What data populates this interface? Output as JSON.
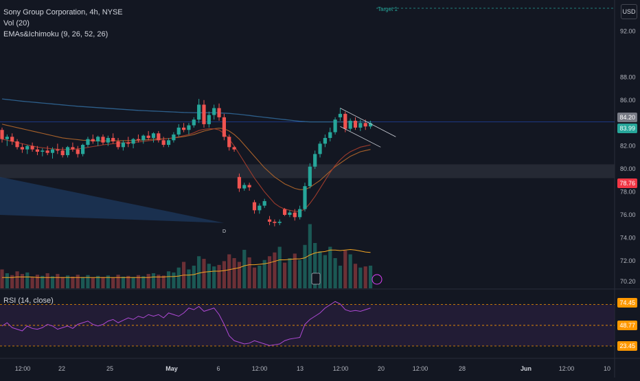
{
  "legend": {
    "symbol": "Sony Group Corporation, 4h, NYSE",
    "volume": "Vol (20)",
    "emas": "EMAs&Ichimoku (9, 26, 52, 26)"
  },
  "rsi": {
    "label": "RSI (14, close)",
    "levels": {
      "upper": "74.45",
      "mid": "48.77",
      "lower": "23.45"
    }
  },
  "currency": "USD",
  "target_label": "Target 1",
  "price_tags": [
    {
      "value": "84.20",
      "color": "#787b86"
    },
    {
      "value": "83.99",
      "color": "#26a69a"
    },
    {
      "value": "78.76",
      "color": "#f23645"
    }
  ],
  "marker": "D",
  "chart_data": {
    "type": "candlestick",
    "title": "Sony Group Corporation, 4h, NYSE",
    "y_axis": {
      "ticks": [
        "92.00",
        "88.00",
        "86.00",
        "82.00",
        "80.00",
        "78.00",
        "76.00",
        "74.00",
        "72.00",
        "70.20"
      ],
      "range": [
        69.6,
        94.0
      ]
    },
    "x_axis": {
      "ticks": [
        "12:00",
        "22",
        "25",
        "May",
        "6",
        "12:00",
        "13",
        "12:00",
        "20",
        "12:00",
        "28",
        "Jun",
        "12:00",
        "10"
      ]
    },
    "candles": [
      [
        83.4,
        83.6,
        82.3,
        82.6
      ],
      [
        82.6,
        83.0,
        82.0,
        82.8
      ],
      [
        82.8,
        83.1,
        82.1,
        82.4
      ],
      [
        82.4,
        82.6,
        81.7,
        81.9
      ],
      [
        81.9,
        82.2,
        81.4,
        81.7
      ],
      [
        81.7,
        82.1,
        81.3,
        82.0
      ],
      [
        82.0,
        82.3,
        81.5,
        81.7
      ],
      [
        81.7,
        82.0,
        81.2,
        81.5
      ],
      [
        81.5,
        81.8,
        81.1,
        81.6
      ],
      [
        81.6,
        82.0,
        81.2,
        81.4
      ],
      [
        81.4,
        81.9,
        80.9,
        81.7
      ],
      [
        81.7,
        82.2,
        81.3,
        81.6
      ],
      [
        81.6,
        81.9,
        81.0,
        81.2
      ],
      [
        81.2,
        82.0,
        81.0,
        81.9
      ],
      [
        81.9,
        82.3,
        81.5,
        81.7
      ],
      [
        81.7,
        82.0,
        81.0,
        81.3
      ],
      [
        81.3,
        82.2,
        81.1,
        82.1
      ],
      [
        82.1,
        82.8,
        81.9,
        82.6
      ],
      [
        82.6,
        83.0,
        82.2,
        82.4
      ],
      [
        82.4,
        82.9,
        82.0,
        82.8
      ],
      [
        82.8,
        83.0,
        82.1,
        82.3
      ],
      [
        82.3,
        82.9,
        82.0,
        82.7
      ],
      [
        82.7,
        83.1,
        82.2,
        82.4
      ],
      [
        82.4,
        82.7,
        81.7,
        81.9
      ],
      [
        81.9,
        82.5,
        81.6,
        82.3
      ],
      [
        82.3,
        82.8,
        81.9,
        82.2
      ],
      [
        82.2,
        82.7,
        81.8,
        82.6
      ],
      [
        82.6,
        83.0,
        82.3,
        82.5
      ],
      [
        82.5,
        83.0,
        82.2,
        82.9
      ],
      [
        82.9,
        83.3,
        82.5,
        82.7
      ],
      [
        82.7,
        83.2,
        82.3,
        83.1
      ],
      [
        83.1,
        83.3,
        82.3,
        82.5
      ],
      [
        82.5,
        82.8,
        81.9,
        82.1
      ],
      [
        82.1,
        82.7,
        81.9,
        82.5
      ],
      [
        82.5,
        83.2,
        82.3,
        83.0
      ],
      [
        83.0,
        83.9,
        82.8,
        83.6
      ],
      [
        83.6,
        84.0,
        83.2,
        83.4
      ],
      [
        83.4,
        84.0,
        83.0,
        83.8
      ],
      [
        83.8,
        84.5,
        83.6,
        84.3
      ],
      [
        84.3,
        86.1,
        84.0,
        85.6
      ],
      [
        85.6,
        86.0,
        83.6,
        83.9
      ],
      [
        83.9,
        85.0,
        83.6,
        84.7
      ],
      [
        84.7,
        85.6,
        84.3,
        85.3
      ],
      [
        85.3,
        85.7,
        84.2,
        84.5
      ],
      [
        84.5,
        84.8,
        82.5,
        82.8
      ],
      [
        82.8,
        83.0,
        81.6,
        81.9
      ],
      [
        81.9,
        82.0,
        81.5,
        81.7
      ],
      [
        79.3,
        79.6,
        78.0,
        78.3
      ],
      [
        78.3,
        78.8,
        78.1,
        78.6
      ],
      [
        78.6,
        78.8,
        78.1,
        78.4
      ],
      [
        77.1,
        77.3,
        76.1,
        76.4
      ],
      [
        76.4,
        77.0,
        76.1,
        76.8
      ],
      [
        76.8,
        77.4,
        76.6,
        77.2
      ],
      [
        75.6,
        75.9,
        75.1,
        75.4
      ],
      [
        75.4,
        75.6,
        75.0,
        75.3
      ],
      [
        75.3,
        75.6,
        75.1,
        75.4
      ],
      [
        76.5,
        76.6,
        75.9,
        76.0
      ],
      [
        76.0,
        76.4,
        75.8,
        76.2
      ],
      [
        76.2,
        76.5,
        75.5,
        75.8
      ],
      [
        75.8,
        76.8,
        75.6,
        76.5
      ],
      [
        76.5,
        78.8,
        76.3,
        78.5
      ],
      [
        78.5,
        80.5,
        78.3,
        80.2
      ],
      [
        80.2,
        81.6,
        80.0,
        81.3
      ],
      [
        81.3,
        82.4,
        81.0,
        82.2
      ],
      [
        82.2,
        83.0,
        81.9,
        82.7
      ],
      [
        82.7,
        83.6,
        82.4,
        83.2
      ],
      [
        83.2,
        84.5,
        83.0,
        84.3
      ],
      [
        84.5,
        85.3,
        84.2,
        84.8
      ],
      [
        84.8,
        85.0,
        83.2,
        83.5
      ],
      [
        83.5,
        84.4,
        83.3,
        84.2
      ],
      [
        84.2,
        84.5,
        83.4,
        83.6
      ],
      [
        83.6,
        84.3,
        83.3,
        84.0
      ],
      [
        84.0,
        84.3,
        83.4,
        83.7
      ],
      [
        83.7,
        84.2,
        83.5,
        83.99
      ]
    ],
    "volumes": [
      50,
      40,
      35,
      45,
      38,
      42,
      30,
      36,
      33,
      40,
      32,
      38,
      30,
      34,
      31,
      36,
      30,
      35,
      28,
      33,
      30,
      34,
      29,
      36,
      31,
      33,
      30,
      35,
      32,
      38,
      40,
      36,
      34,
      45,
      42,
      55,
      70,
      50,
      60,
      85,
      78,
      65,
      58,
      62,
      72,
      90,
      80,
      70,
      102,
      82,
      55,
      60,
      75,
      85,
      95,
      110,
      68,
      80,
      92,
      75,
      115,
      170,
      120,
      98,
      88,
      110,
      80,
      60,
      100,
      90,
      65,
      55,
      58,
      60
    ],
    "volume_ma": [
      22,
      22,
      22,
      23,
      23,
      23,
      23,
      22,
      22,
      22,
      22,
      22,
      22,
      22,
      22,
      22,
      22,
      22,
      22,
      22,
      22,
      22,
      22,
      22,
      22,
      22,
      22,
      22,
      22,
      22,
      23,
      23,
      23,
      24,
      24,
      25,
      27,
      27,
      28,
      31,
      33,
      34,
      35,
      35,
      36,
      38,
      40,
      42,
      46,
      48,
      48,
      49,
      50,
      52,
      55,
      58,
      58,
      59,
      60,
      60,
      62,
      68,
      72,
      74,
      75,
      78,
      78,
      77,
      78,
      79,
      78,
      76,
      74,
      73
    ],
    "vol_scale_max": 200,
    "ema_blue": [
      86.1,
      86.05,
      86.0,
      85.95,
      85.9,
      85.86,
      85.82,
      85.78,
      85.74,
      85.7,
      85.66,
      85.62,
      85.58,
      85.54,
      85.5,
      85.46,
      85.43,
      85.4,
      85.37,
      85.34,
      85.31,
      85.28,
      85.25,
      85.22,
      85.19,
      85.16,
      85.13,
      85.1,
      85.08,
      85.06,
      85.04,
      85.02,
      85.0,
      84.98,
      84.96,
      84.94,
      84.92,
      84.91,
      84.9,
      84.9,
      84.9,
      84.9,
      84.9,
      84.88,
      84.86,
      84.84,
      84.8,
      84.76,
      84.71,
      84.66,
      84.6,
      84.55,
      84.5,
      84.45,
      84.4,
      84.35,
      84.3,
      84.25,
      84.2,
      84.15,
      84.12,
      84.1,
      84.1,
      84.1,
      84.1,
      84.1,
      84.1,
      84.1,
      84.1,
      84.1,
      84.1,
      84.1,
      84.1,
      84.1
    ],
    "ema_orange": [
      83.9,
      83.8,
      83.7,
      83.6,
      83.5,
      83.4,
      83.3,
      83.2,
      83.1,
      83.0,
      82.9,
      82.8,
      82.7,
      82.65,
      82.6,
      82.55,
      82.5,
      82.48,
      82.46,
      82.44,
      82.44,
      82.45,
      82.45,
      82.46,
      82.46,
      82.47,
      82.48,
      82.5,
      82.52,
      82.55,
      82.6,
      82.62,
      82.63,
      82.65,
      82.7,
      82.75,
      82.82,
      82.9,
      83.0,
      83.15,
      83.3,
      83.4,
      83.5,
      83.55,
      83.5,
      83.3,
      83.0,
      82.6,
      82.1,
      81.6,
      81.1,
      80.6,
      80.1,
      79.7,
      79.3,
      79.0,
      78.7,
      78.5,
      78.3,
      78.2,
      78.2,
      78.4,
      78.7,
      79.0,
      79.4,
      79.8,
      80.2,
      80.5,
      80.8,
      81.1,
      81.3,
      81.5,
      81.6,
      81.7
    ],
    "ema_red": [
      82.6,
      82.5,
      82.4,
      82.3,
      82.2,
      82.1,
      82.0,
      81.9,
      81.85,
      81.8,
      81.75,
      81.72,
      81.7,
      81.7,
      81.72,
      81.75,
      81.8,
      81.88,
      81.95,
      82.02,
      82.1,
      82.15,
      82.2,
      82.25,
      82.28,
      82.3,
      82.32,
      82.35,
      82.4,
      82.45,
      82.5,
      82.55,
      82.6,
      82.65,
      82.72,
      82.8,
      82.9,
      83.0,
      83.15,
      83.35,
      83.45,
      83.5,
      83.5,
      83.4,
      83.1,
      82.6,
      82.0,
      81.3,
      80.6,
      79.9,
      79.2,
      78.6,
      78.0,
      77.5,
      77.0,
      76.7,
      76.5,
      76.4,
      76.3,
      76.3,
      76.5,
      77.0,
      77.6,
      78.3,
      79.0,
      79.7,
      80.3,
      80.8,
      81.2,
      81.5,
      81.7,
      81.9,
      82.0,
      82.1
    ],
    "rsi": [
      48,
      52,
      46,
      44,
      42,
      48,
      45,
      44,
      46,
      50,
      48,
      44,
      46,
      48,
      45,
      50,
      52,
      54,
      50,
      48,
      50,
      54,
      56,
      52,
      55,
      58,
      56,
      60,
      58,
      62,
      60,
      62,
      58,
      64,
      62,
      60,
      64,
      70,
      68,
      72,
      66,
      68,
      70,
      62,
      50,
      36,
      30,
      28,
      26,
      27,
      30,
      28,
      26,
      24,
      25,
      26,
      30,
      32,
      33,
      34,
      50,
      56,
      60,
      64,
      70,
      74,
      78,
      75,
      68,
      66,
      67,
      66,
      68,
      70
    ],
    "rsi_range": [
      10,
      90
    ],
    "zone": {
      "from": 79.2,
      "to": 80.4
    },
    "hline": 84.1,
    "target_line": 94.0,
    "trendline_upper": {
      "from": [
        67,
        85.3
      ],
      "to": [
        78,
        82.8
      ]
    },
    "trendline_lower": {
      "from": [
        67,
        83.7
      ],
      "to": [
        75,
        81.9
      ]
    }
  }
}
